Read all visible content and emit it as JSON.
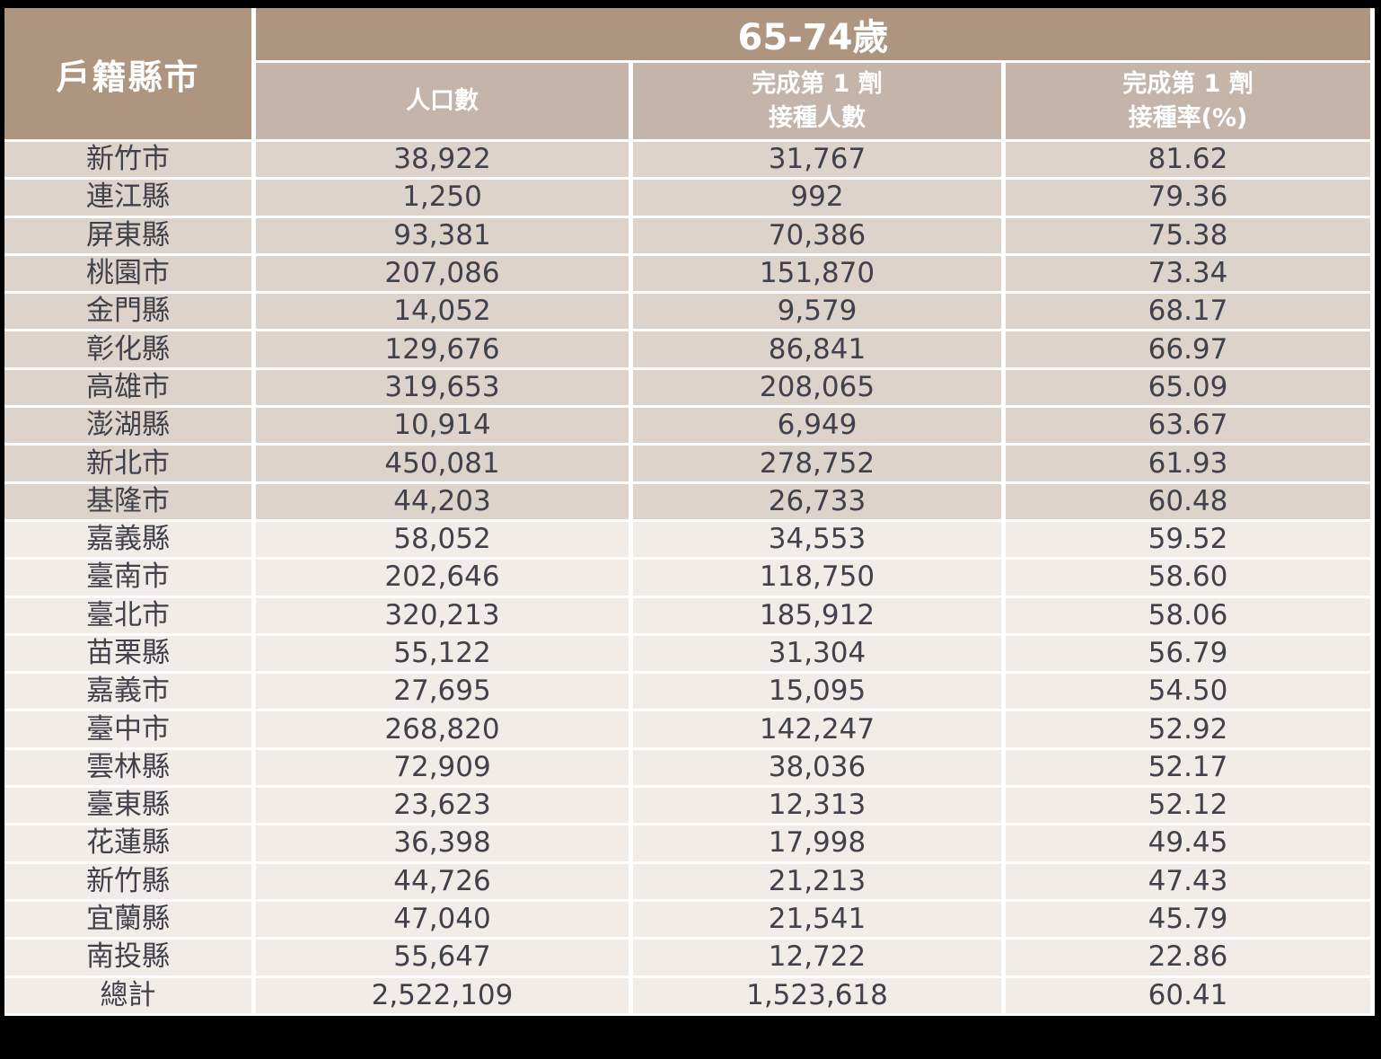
{
  "chart_data": {
    "type": "table",
    "title": "65-74歲",
    "corner_header": "戶籍縣市",
    "columns": [
      "人口數",
      "完成第 1 劑\n接種人數",
      "完成第 1 劑\n接種率(%)"
    ],
    "rows": [
      {
        "county": "新竹市",
        "population": "38,922",
        "dose1_count": "31,767",
        "dose1_rate": "81.62",
        "highlight": true
      },
      {
        "county": "連江縣",
        "population": "1,250",
        "dose1_count": "992",
        "dose1_rate": "79.36",
        "highlight": true
      },
      {
        "county": "屏東縣",
        "population": "93,381",
        "dose1_count": "70,386",
        "dose1_rate": "75.38",
        "highlight": true
      },
      {
        "county": "桃園市",
        "population": "207,086",
        "dose1_count": "151,870",
        "dose1_rate": "73.34",
        "highlight": true
      },
      {
        "county": "金門縣",
        "population": "14,052",
        "dose1_count": "9,579",
        "dose1_rate": "68.17",
        "highlight": true
      },
      {
        "county": "彰化縣",
        "population": "129,676",
        "dose1_count": "86,841",
        "dose1_rate": "66.97",
        "highlight": true
      },
      {
        "county": "高雄市",
        "population": "319,653",
        "dose1_count": "208,065",
        "dose1_rate": "65.09",
        "highlight": true
      },
      {
        "county": "澎湖縣",
        "population": "10,914",
        "dose1_count": "6,949",
        "dose1_rate": "63.67",
        "highlight": true
      },
      {
        "county": "新北市",
        "population": "450,081",
        "dose1_count": "278,752",
        "dose1_rate": "61.93",
        "highlight": true
      },
      {
        "county": "基隆市",
        "population": "44,203",
        "dose1_count": "26,733",
        "dose1_rate": "60.48",
        "highlight": true
      },
      {
        "county": "嘉義縣",
        "population": "58,052",
        "dose1_count": "34,553",
        "dose1_rate": "59.52",
        "highlight": false
      },
      {
        "county": "臺南市",
        "population": "202,646",
        "dose1_count": "118,750",
        "dose1_rate": "58.60",
        "highlight": false
      },
      {
        "county": "臺北市",
        "population": "320,213",
        "dose1_count": "185,912",
        "dose1_rate": "58.06",
        "highlight": false
      },
      {
        "county": "苗栗縣",
        "population": "55,122",
        "dose1_count": "31,304",
        "dose1_rate": "56.79",
        "highlight": false
      },
      {
        "county": "嘉義市",
        "population": "27,695",
        "dose1_count": "15,095",
        "dose1_rate": "54.50",
        "highlight": false
      },
      {
        "county": "臺中市",
        "population": "268,820",
        "dose1_count": "142,247",
        "dose1_rate": "52.92",
        "highlight": false
      },
      {
        "county": "雲林縣",
        "population": "72,909",
        "dose1_count": "38,036",
        "dose1_rate": "52.17",
        "highlight": false
      },
      {
        "county": "臺東縣",
        "population": "23,623",
        "dose1_count": "12,313",
        "dose1_rate": "52.12",
        "highlight": false
      },
      {
        "county": "花蓮縣",
        "population": "36,398",
        "dose1_count": "17,998",
        "dose1_rate": "49.45",
        "highlight": false
      },
      {
        "county": "新竹縣",
        "population": "44,726",
        "dose1_count": "21,213",
        "dose1_rate": "47.43",
        "highlight": false
      },
      {
        "county": "宜蘭縣",
        "population": "47,040",
        "dose1_count": "21,541",
        "dose1_rate": "45.79",
        "highlight": false
      },
      {
        "county": "南投縣",
        "population": "55,647",
        "dose1_count": "12,722",
        "dose1_rate": "22.86",
        "highlight": false
      }
    ],
    "total_row": {
      "county": "總計",
      "population": "2,522,109",
      "dose1_count": "1,523,618",
      "dose1_rate": "60.41"
    }
  },
  "colors": {
    "page_bg": "#000000",
    "grid_white": "#ffffff",
    "header_brown": "#ae9580",
    "subheader_brown": "#c5b4a9",
    "row_dark": "#ded3ca",
    "row_light": "#f2ece8",
    "text_dark": "#40414b",
    "header_text": "#ffffff"
  }
}
